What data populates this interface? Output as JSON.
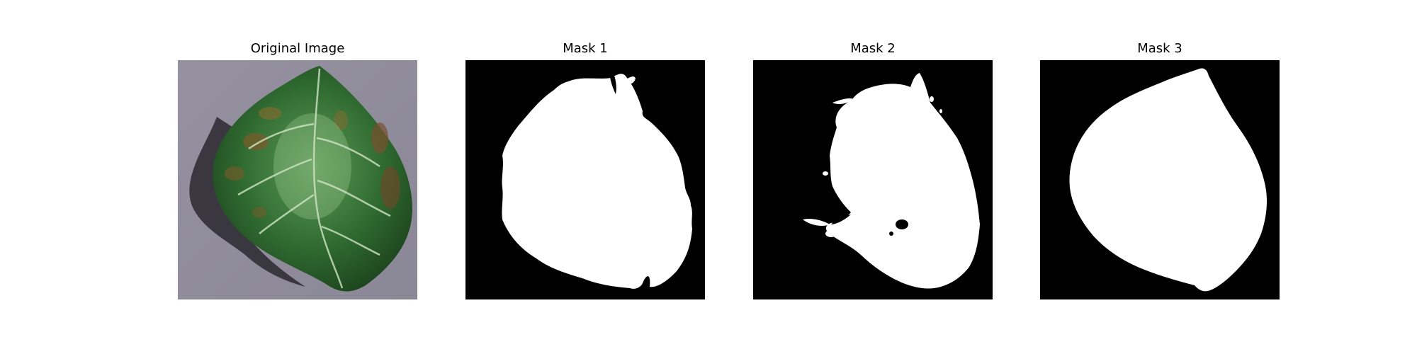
{
  "figure": {
    "panels": [
      {
        "title": "Original Image",
        "kind": "photo",
        "content": "leaf-photo"
      },
      {
        "title": "Mask 1",
        "kind": "mask",
        "content": "leaf-mask"
      },
      {
        "title": "Mask 2",
        "kind": "mask",
        "content": "leaf-mask"
      },
      {
        "title": "Mask 3",
        "kind": "mask",
        "content": "leaf-mask"
      }
    ]
  },
  "colors": {
    "background_gray": "#8f8b99",
    "leaf_dark_green": "#1f4a22",
    "leaf_mid_green": "#3a7a3a",
    "leaf_light_green": "#8fc08a",
    "lesion_brown": "#7a5a2a",
    "shadow": "#2a2830",
    "mask_background": "#000000",
    "mask_foreground": "#ffffff"
  }
}
